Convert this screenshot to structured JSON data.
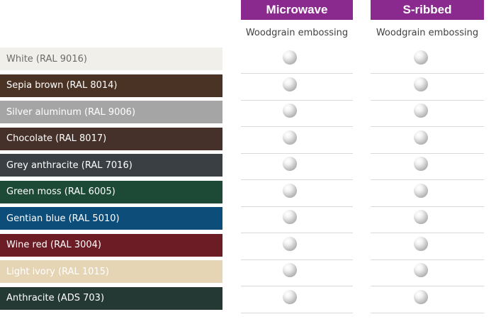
{
  "columns": [
    {
      "title": "Microwave",
      "subtitle": "Woodgrain embossing"
    },
    {
      "title": "S-ribbed",
      "subtitle": "Woodgrain embossing"
    }
  ],
  "rows": [
    {
      "label": "White (RAL 9016)",
      "color": "#f0efea",
      "text_color": "#6b6b6b"
    },
    {
      "label": "Sepia brown (RAL 8014)",
      "color": "#4a3224",
      "text_color": "#ffffff"
    },
    {
      "label": "Silver aluminum (RAL 9006)",
      "color": "#a5a5a5",
      "text_color": "#ffffff"
    },
    {
      "label": "Chocolate (RAL 8017)",
      "color": "#45302a",
      "text_color": "#ffffff"
    },
    {
      "label": "Grey anthracite (RAL 7016)",
      "color": "#3a3f43",
      "text_color": "#ffffff"
    },
    {
      "label": "Green moss (RAL 6005)",
      "color": "#1c4a36",
      "text_color": "#ffffff"
    },
    {
      "label": "Gentian blue (RAL 5010)",
      "color": "#0d4d7a",
      "text_color": "#ffffff"
    },
    {
      "label": "Wine red (RAL 3004)",
      "color": "#6b1c25",
      "text_color": "#ffffff"
    },
    {
      "label": "Light ivory (RAL 1015)",
      "color": "#e6d5b5",
      "text_color": "#ffffff"
    },
    {
      "label": "Anthracite (ADS 703)",
      "color": "#253934",
      "text_color": "#ffffff"
    }
  ],
  "availability_icon": "grey-sphere-dot"
}
